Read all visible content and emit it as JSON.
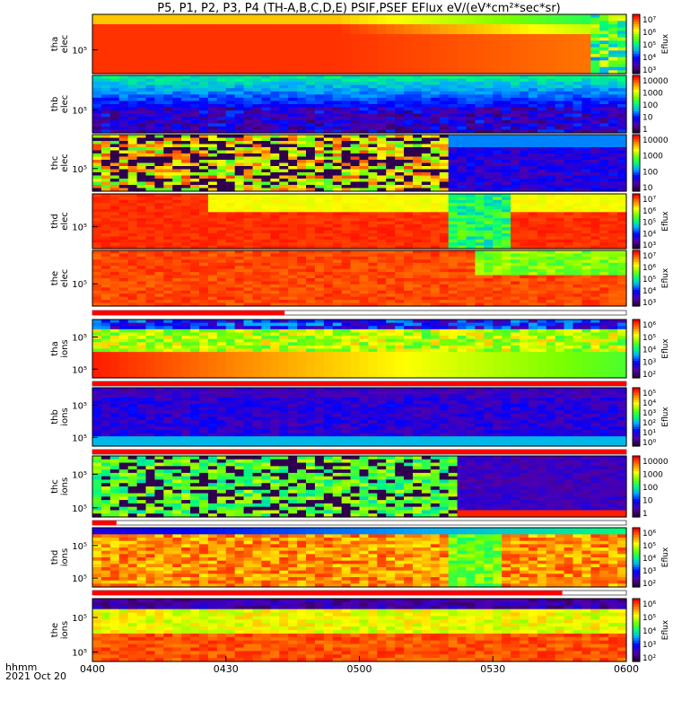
{
  "title": "P5, P1, P2, P3, P4 (TH-A,B,C,D,E) PSIF,PSEF EFlux eV/(eV*cm²*sec*sr)",
  "footer": {
    "label": "hhmm",
    "date": "2021 Oct 20"
  },
  "colors": {
    "bar": "#ff0000"
  },
  "chart_data": {
    "type": "heatmap",
    "title": "P5, P1, P2, P3, P4 (TH-A,B,C,D,E) PSIF,PSEF EFlux eV/(eV*cm²*sec*sr)",
    "x_ticks": [
      "0400",
      "0430",
      "0500",
      "0530",
      "0600"
    ],
    "x_range": [
      "04:00",
      "06:00"
    ],
    "panels": [
      {
        "ylabel": [
          "tha",
          "elec"
        ],
        "yticks": [
          "10⁵"
        ],
        "cbar": [
          "10⁷",
          "10⁶",
          "10⁵",
          "10⁴",
          "10³"
        ],
        "cbar_label": "Eflux",
        "cbar_range": [
          1000,
          10000000
        ]
      },
      {
        "ylabel": [
          "thb",
          "elec"
        ],
        "yticks": [
          "10⁵"
        ],
        "cbar": [
          "10000",
          "1000",
          "100",
          "10",
          "1"
        ],
        "cbar_label": "",
        "cbar_range": [
          1,
          10000
        ]
      },
      {
        "ylabel": [
          "thc",
          "elec"
        ],
        "yticks": [
          "10⁵"
        ],
        "cbar": [
          "10000",
          "1000",
          "100",
          "10"
        ],
        "cbar_label": "",
        "cbar_range": [
          10,
          10000
        ]
      },
      {
        "ylabel": [
          "thd",
          "elec"
        ],
        "yticks": [
          "10⁵"
        ],
        "cbar": [
          "10⁷",
          "10⁶",
          "10⁵",
          "10⁴",
          "10³"
        ],
        "cbar_label": "Eflux",
        "cbar_range": [
          1000,
          10000000
        ]
      },
      {
        "ylabel": [
          "the",
          "elec"
        ],
        "yticks": [
          "10⁵"
        ],
        "cbar": [
          "10⁷",
          "10⁶",
          "10⁵",
          "10⁴",
          "10³"
        ],
        "cbar_label": "Eflux",
        "cbar_range": [
          1000,
          10000000
        ]
      },
      {
        "ylabel": [
          "tha",
          "ions"
        ],
        "yticks": [
          "10⁵",
          "10⁵"
        ],
        "cbar": [
          "10⁶",
          "10⁵",
          "10⁴",
          "10³",
          "10²"
        ],
        "cbar_label": "Eflux",
        "cbar_range": [
          100,
          1000000
        ]
      },
      {
        "ylabel": [
          "thb",
          "ions"
        ],
        "yticks": [
          "10⁵",
          "10⁵"
        ],
        "cbar": [
          "10⁵",
          "10⁴",
          "10³",
          "10²",
          "10¹",
          "10⁰"
        ],
        "cbar_label": "Eflux",
        "cbar_range": [
          1,
          100000
        ]
      },
      {
        "ylabel": [
          "thc",
          "ions"
        ],
        "yticks": [
          "10⁵",
          "10⁵"
        ],
        "cbar": [
          "10000",
          "1000",
          "100",
          "10",
          "1"
        ],
        "cbar_label": "",
        "cbar_range": [
          1,
          10000
        ]
      },
      {
        "ylabel": [
          "thd",
          "ions"
        ],
        "yticks": [
          "10⁵",
          "10⁵"
        ],
        "cbar": [
          "10⁶",
          "10⁵",
          "10⁴",
          "10³",
          "10²"
        ],
        "cbar_label": "Eflux",
        "cbar_range": [
          100,
          1000000
        ]
      },
      {
        "ylabel": [
          "the",
          "ions"
        ],
        "yticks": [
          "10⁵",
          "10⁵"
        ],
        "cbar": [
          "10⁶",
          "10⁵",
          "10⁴",
          "10³",
          "10²"
        ],
        "cbar_label": "Eflux",
        "cbar_range": [
          100,
          1000000
        ]
      }
    ],
    "mode_bars": [
      {
        "after_panel": 5,
        "red_fraction": 0.36
      },
      {
        "after_panel": 6,
        "red_fraction": 1.0
      },
      {
        "after_panel": 7,
        "red_fraction": 1.0
      },
      {
        "after_panel": 8,
        "red_fraction": 0.045
      },
      {
        "after_panel": 9,
        "red_fraction": 0.88
      }
    ]
  }
}
